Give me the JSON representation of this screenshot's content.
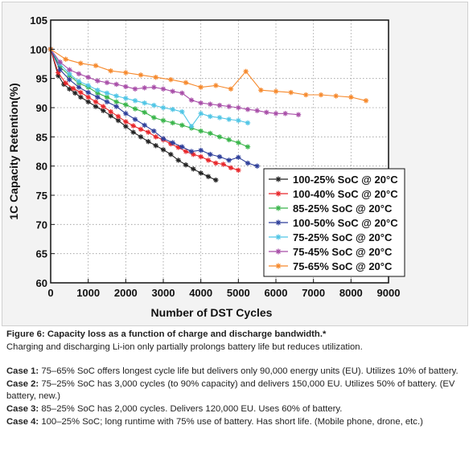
{
  "figure": {
    "caption_title": "Figure 6: Capacity loss as a function of charge and discharge bandwidth.*",
    "caption_subtitle": "Charging and discharging Li-ion only partially prolongs battery life but reduces utilization."
  },
  "cases": [
    {
      "label": "Case 1:",
      "text": " 75–65% SoC offers longest cycle life but delivers only 90,000 energy units (EU). Utilizes 10% of battery."
    },
    {
      "label": "Case 2:",
      "text": " 75–25% SoC has 3,000 cycles (to 90% capacity) and delivers 150,000 EU. Utilizes 50% of battery. (EV battery, new.)"
    },
    {
      "label": "Case 3:",
      "text": " 85–25% SoC has 2,000 cycles. Delivers 120,000 EU. Uses 60% of battery."
    },
    {
      "label": "Case 4:",
      "text": " 100–25% SoC; long runtime with 75% use of battery. Has short life. (Mobile phone, drone, etc.)"
    }
  ],
  "chart_data": {
    "type": "line",
    "title": "",
    "xlabel": "Number of DST Cycles",
    "ylabel": "1C Capacity Retention(%)",
    "xlim": [
      0,
      9000
    ],
    "ylim": [
      60,
      105
    ],
    "xticks": [
      0,
      1000,
      2000,
      3000,
      4000,
      5000,
      6000,
      7000,
      8000,
      9000
    ],
    "yticks": [
      60,
      65,
      70,
      75,
      80,
      85,
      90,
      95,
      100,
      105
    ],
    "grid": true,
    "legend_position": "bottom-right",
    "series": [
      {
        "name": "100-25% SoC @ 20°C",
        "color": "#222222",
        "marker": "asterisk",
        "x": [
          0,
          200,
          350,
          500,
          650,
          800,
          1000,
          1200,
          1400,
          1600,
          1800,
          2000,
          2200,
          2400,
          2600,
          2800,
          3000,
          3200,
          3400,
          3600,
          3800,
          4000,
          4200,
          4400
        ],
        "y": [
          100,
          95.5,
          94.0,
          93.2,
          92.5,
          91.8,
          91.0,
          90.2,
          89.5,
          88.6,
          87.8,
          86.8,
          85.8,
          85.0,
          84.2,
          83.5,
          82.8,
          82.0,
          81.0,
          80.2,
          79.5,
          78.8,
          78.2,
          77.6
        ]
      },
      {
        "name": "100-40% SoC @ 20°C",
        "color": "#e8262a",
        "marker": "asterisk",
        "x": [
          0,
          200,
          400,
          600,
          800,
          1000,
          1200,
          1400,
          1600,
          1800,
          2000,
          2200,
          2400,
          2600,
          2800,
          3000,
          3200,
          3400,
          3600,
          3800,
          4000,
          4200,
          4400,
          4600,
          4800,
          5000
        ],
        "y": [
          100,
          96.0,
          94.2,
          93.3,
          92.6,
          91.8,
          91.0,
          90.2,
          89.3,
          88.5,
          87.6,
          86.9,
          86.3,
          85.8,
          85.0,
          84.5,
          83.8,
          83.2,
          82.5,
          82.0,
          81.6,
          81.0,
          80.5,
          80.3,
          79.7,
          79.3
        ]
      },
      {
        "name": "85-25% SoC @ 20°C",
        "color": "#39b54a",
        "marker": "asterisk",
        "x": [
          0,
          250,
          500,
          750,
          1000,
          1250,
          1500,
          1750,
          2000,
          2250,
          2500,
          2750,
          3000,
          3250,
          3500,
          3750,
          4000,
          4250,
          4500,
          4750,
          5000,
          5250
        ],
        "y": [
          100,
          97.0,
          95.5,
          94.2,
          93.5,
          92.5,
          91.8,
          91.0,
          90.5,
          89.8,
          89.2,
          88.3,
          87.8,
          87.4,
          87.0,
          86.5,
          86.0,
          85.6,
          85.0,
          84.5,
          84.0,
          83.3
        ]
      },
      {
        "name": "100-50% SoC @ 20°C",
        "color": "#2e3f9a",
        "marker": "asterisk",
        "x": [
          0,
          250,
          500,
          750,
          1000,
          1250,
          1500,
          1750,
          2000,
          2250,
          2500,
          2750,
          3000,
          3250,
          3500,
          3750,
          4000,
          4250,
          4500,
          4750,
          5000,
          5250,
          5500
        ],
        "y": [
          100,
          96.5,
          94.8,
          93.5,
          92.6,
          91.8,
          91.0,
          90.2,
          89.0,
          88.0,
          87.0,
          86.0,
          84.7,
          84.0,
          83.3,
          82.5,
          82.7,
          82.0,
          81.6,
          81.0,
          81.5,
          80.5,
          80.0
        ]
      },
      {
        "name": "75-25% SoC @ 20°C",
        "color": "#4fc5e5",
        "marker": "asterisk",
        "x": [
          0,
          250,
          500,
          750,
          1000,
          1250,
          1500,
          1750,
          2000,
          2250,
          2500,
          2750,
          3000,
          3250,
          3500,
          3750,
          4000,
          4250,
          4500,
          4750,
          5000,
          5250
        ],
        "y": [
          100,
          97.5,
          95.8,
          94.5,
          93.8,
          93.0,
          92.5,
          92.0,
          91.6,
          91.2,
          90.8,
          90.4,
          90.0,
          89.7,
          89.3,
          86.8,
          89.0,
          88.5,
          88.3,
          88.0,
          87.8,
          87.4
        ]
      },
      {
        "name": "75-45% SoC @ 20°C",
        "color": "#a84ea8",
        "marker": "asterisk",
        "x": [
          0,
          250,
          500,
          750,
          1000,
          1250,
          1500,
          1750,
          2000,
          2250,
          2500,
          2750,
          3000,
          3250,
          3500,
          3750,
          4000,
          4250,
          4500,
          4750,
          5000,
          5250,
          5500,
          5750,
          6000,
          6250,
          6600
        ],
        "y": [
          100,
          97.8,
          96.5,
          95.8,
          95.2,
          94.6,
          94.3,
          94.0,
          93.6,
          93.2,
          93.4,
          93.5,
          93.2,
          92.8,
          92.5,
          91.3,
          90.8,
          90.6,
          90.4,
          90.2,
          90.0,
          89.7,
          89.5,
          89.2,
          89.0,
          89.0,
          88.8
        ]
      },
      {
        "name": "75-65% SoC @ 20°C",
        "color": "#f6892c",
        "marker": "asterisk",
        "x": [
          0,
          400,
          800,
          1200,
          1600,
          2000,
          2400,
          2800,
          3200,
          3600,
          4000,
          4400,
          4800,
          5200,
          5600,
          6000,
          6400,
          6800,
          7200,
          7600,
          8000,
          8400
        ],
        "y": [
          100,
          98.3,
          97.6,
          97.2,
          96.3,
          96.0,
          95.6,
          95.2,
          94.8,
          94.3,
          93.5,
          93.8,
          93.2,
          96.2,
          93.0,
          92.8,
          92.6,
          92.2,
          92.2,
          92.0,
          91.8,
          91.2
        ]
      }
    ]
  }
}
